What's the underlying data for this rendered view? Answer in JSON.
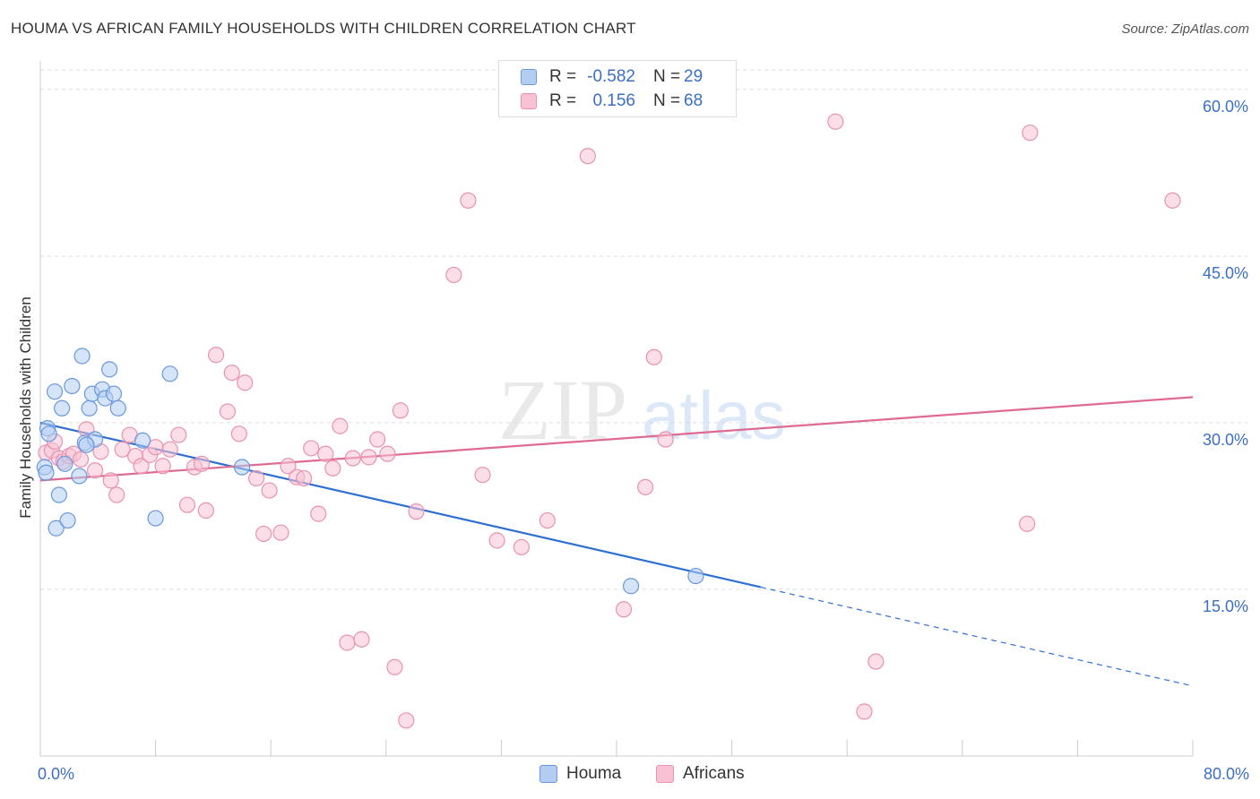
{
  "header": {
    "title": "HOUMA VS AFRICAN FAMILY HOUSEHOLDS WITH CHILDREN CORRELATION CHART",
    "source": "Source: ZipAtlas.com"
  },
  "watermark": {
    "zip": "ZIP",
    "atlas": "atlas"
  },
  "legend": {
    "rows": [
      {
        "r_label": "R =",
        "r_value": "-0.582",
        "n_label": "N =",
        "n_value": "29"
      },
      {
        "r_label": "R =",
        "r_value": "0.156",
        "n_label": "N =",
        "n_value": "68"
      }
    ]
  },
  "bottom_legend": {
    "houma": "Houma",
    "africans": "Africans"
  },
  "chart_data": {
    "type": "scatter",
    "ylabel": "Family Households with Children",
    "xlim": [
      0,
      80
    ],
    "ylim": [
      0,
      62
    ],
    "x_tick_labels": [
      "0.0%",
      "80.0%"
    ],
    "y_ticks": [
      15,
      30,
      45,
      60
    ],
    "y_tick_labels": [
      "15.0%",
      "30.0%",
      "45.0%",
      "60.0%"
    ],
    "grid": true,
    "colors": {
      "houma_fill": "#b3cdf2",
      "houma_stroke": "#6a98dc",
      "houma_line": "#2f6fd4",
      "africans_fill": "#f8c2d4",
      "africans_stroke": "#e892b0",
      "africans_line": "#de6b93",
      "tick_text": "#3b6fc4"
    },
    "series": [
      {
        "name": "Houma",
        "points": [
          [
            0.3,
            26.0
          ],
          [
            0.4,
            25.5
          ],
          [
            0.5,
            29.5
          ],
          [
            0.6,
            29.0
          ],
          [
            1.0,
            32.8
          ],
          [
            1.1,
            20.5
          ],
          [
            1.3,
            23.5
          ],
          [
            1.5,
            31.3
          ],
          [
            1.7,
            26.3
          ],
          [
            1.9,
            21.2
          ],
          [
            2.2,
            33.3
          ],
          [
            2.7,
            25.2
          ],
          [
            2.9,
            36.0
          ],
          [
            3.1,
            28.2
          ],
          [
            3.4,
            31.3
          ],
          [
            3.6,
            32.6
          ],
          [
            3.8,
            28.5
          ],
          [
            4.3,
            33.0
          ],
          [
            4.5,
            32.2
          ],
          [
            4.8,
            34.8
          ],
          [
            5.1,
            32.6
          ],
          [
            5.4,
            31.3
          ],
          [
            7.1,
            28.4
          ],
          [
            8.0,
            21.4
          ],
          [
            9.0,
            34.4
          ],
          [
            14.0,
            26.0
          ],
          [
            41.0,
            15.3
          ],
          [
            45.5,
            16.2
          ],
          [
            3.2,
            28.0
          ]
        ],
        "trend": {
          "x": [
            0,
            50
          ],
          "y": [
            30.0,
            15.2
          ],
          "dashed_to": [
            80,
            6.3
          ]
        }
      },
      {
        "name": "Africans",
        "points": [
          [
            0.4,
            27.3
          ],
          [
            0.8,
            27.5
          ],
          [
            1.0,
            28.3
          ],
          [
            1.3,
            26.8
          ],
          [
            1.6,
            26.5
          ],
          [
            2.0,
            27.0
          ],
          [
            2.3,
            27.2
          ],
          [
            2.8,
            26.7
          ],
          [
            3.2,
            29.4
          ],
          [
            3.8,
            25.7
          ],
          [
            4.2,
            27.4
          ],
          [
            4.9,
            24.8
          ],
          [
            5.3,
            23.5
          ],
          [
            5.7,
            27.6
          ],
          [
            6.2,
            28.9
          ],
          [
            6.6,
            27.0
          ],
          [
            7.0,
            26.1
          ],
          [
            7.6,
            27.1
          ],
          [
            8.0,
            27.8
          ],
          [
            8.5,
            26.1
          ],
          [
            9.0,
            27.6
          ],
          [
            9.6,
            28.9
          ],
          [
            10.2,
            22.6
          ],
          [
            10.7,
            26.0
          ],
          [
            11.2,
            26.3
          ],
          [
            11.5,
            22.1
          ],
          [
            12.2,
            36.1
          ],
          [
            13.0,
            31.0
          ],
          [
            13.3,
            34.5
          ],
          [
            13.8,
            29.0
          ],
          [
            14.2,
            33.6
          ],
          [
            15.0,
            25.0
          ],
          [
            15.5,
            20.0
          ],
          [
            15.9,
            23.9
          ],
          [
            16.7,
            20.1
          ],
          [
            17.2,
            26.1
          ],
          [
            17.8,
            25.1
          ],
          [
            18.3,
            25.0
          ],
          [
            18.8,
            27.7
          ],
          [
            19.3,
            21.8
          ],
          [
            19.8,
            27.2
          ],
          [
            20.3,
            25.9
          ],
          [
            20.8,
            29.7
          ],
          [
            21.3,
            10.2
          ],
          [
            21.7,
            26.8
          ],
          [
            22.3,
            10.5
          ],
          [
            22.8,
            26.9
          ],
          [
            23.4,
            28.5
          ],
          [
            24.1,
            27.2
          ],
          [
            24.6,
            8.0
          ],
          [
            25.0,
            31.1
          ],
          [
            25.4,
            3.2
          ],
          [
            26.1,
            22.0
          ],
          [
            28.7,
            43.3
          ],
          [
            29.7,
            50.0
          ],
          [
            30.7,
            25.3
          ],
          [
            31.7,
            19.4
          ],
          [
            33.4,
            18.8
          ],
          [
            35.2,
            21.2
          ],
          [
            38.0,
            54.0
          ],
          [
            40.5,
            13.2
          ],
          [
            42.0,
            24.2
          ],
          [
            42.6,
            35.9
          ],
          [
            43.4,
            28.5
          ],
          [
            55.2,
            57.1
          ],
          [
            58.0,
            8.5
          ],
          [
            68.7,
            56.1
          ],
          [
            78.6,
            50.0
          ]
        ],
        "extra_points": [
          [
            57.2,
            4.0
          ],
          [
            68.5,
            20.9
          ]
        ],
        "trend": {
          "x": [
            0,
            80
          ],
          "y": [
            24.8,
            32.3
          ]
        }
      }
    ]
  }
}
